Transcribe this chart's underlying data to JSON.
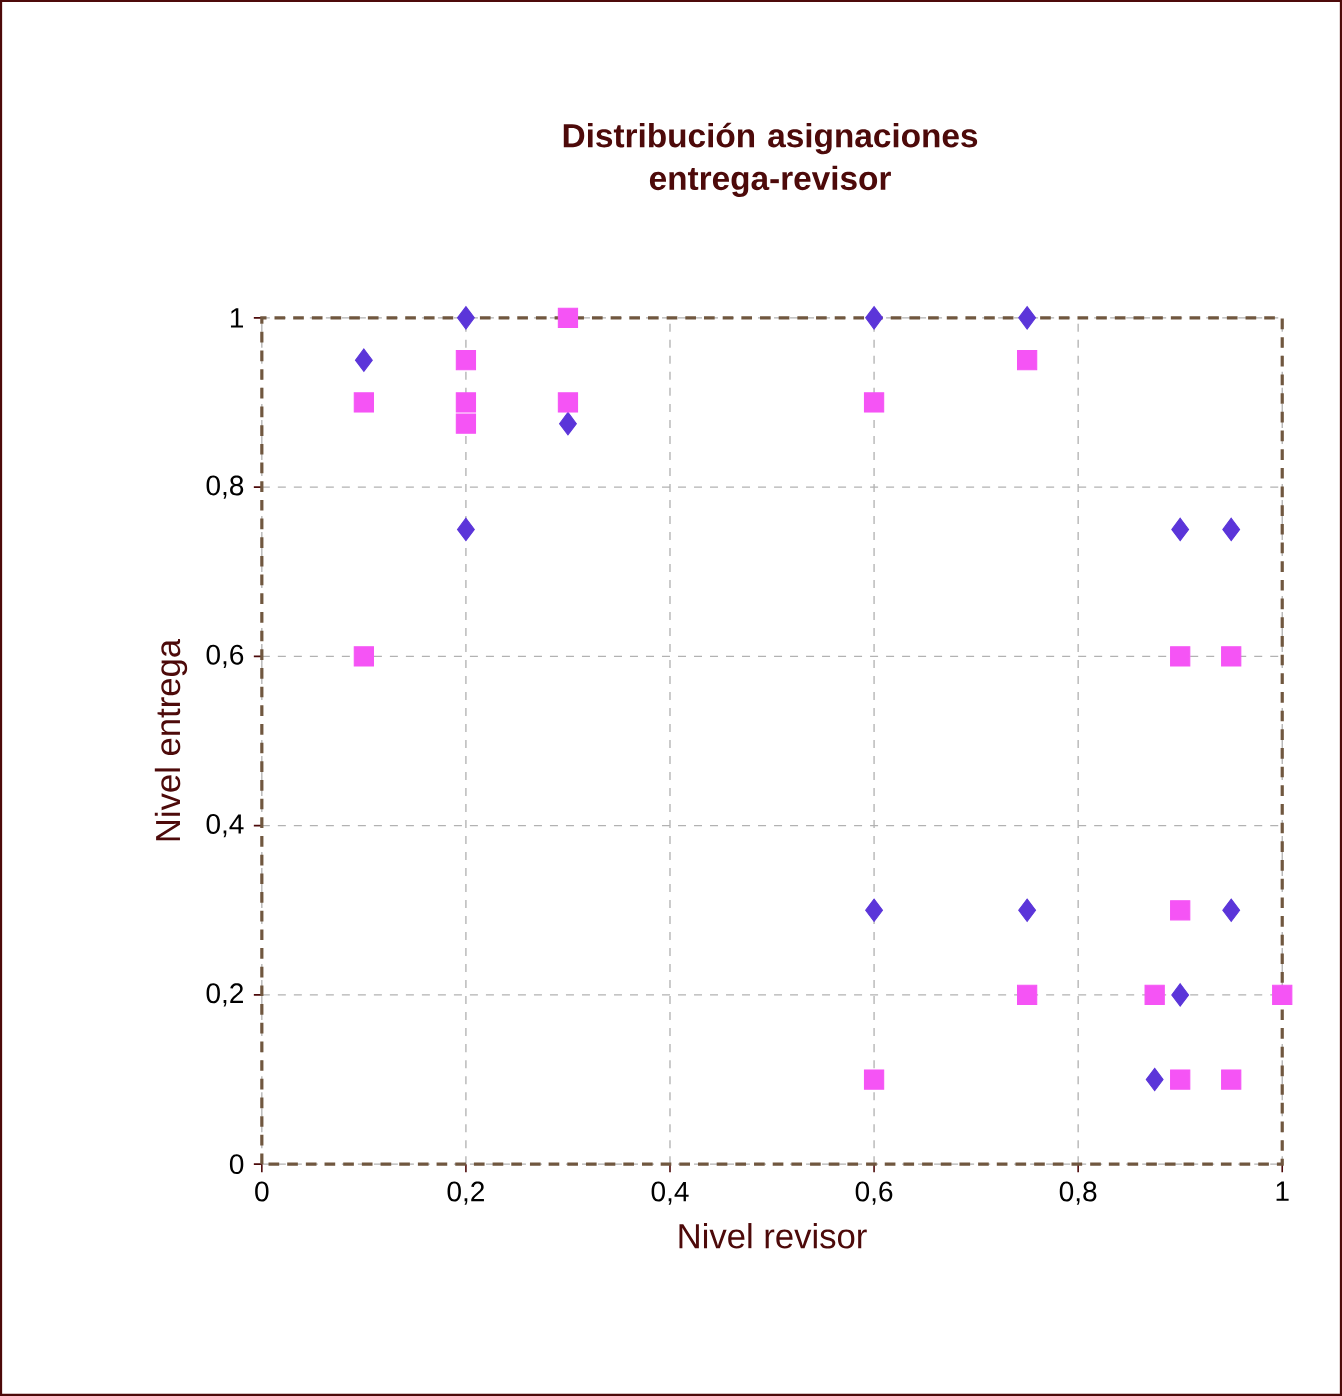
{
  "chart_data": {
    "type": "scatter",
    "title": "Distribución asignaciones entrega-revisor",
    "xlabel": "Nivel revisor",
    "ylabel": "Nivel entrega",
    "xlim": [
      0,
      1
    ],
    "ylim": [
      0,
      1
    ],
    "xticks": [
      {
        "value": 0,
        "label": "0"
      },
      {
        "value": 0.2,
        "label": "0,2"
      },
      {
        "value": 0.4,
        "label": "0,4"
      },
      {
        "value": 0.6,
        "label": "0,6"
      },
      {
        "value": 0.8,
        "label": "0,8"
      },
      {
        "value": 1,
        "label": "1"
      }
    ],
    "yticks": [
      {
        "value": 0,
        "label": "0"
      },
      {
        "value": 0.2,
        "label": "0,2"
      },
      {
        "value": 0.4,
        "label": "0,4"
      },
      {
        "value": 0.6,
        "label": "0,6"
      },
      {
        "value": 0.8,
        "label": "0,8"
      },
      {
        "value": 1,
        "label": "1"
      }
    ],
    "grid": true,
    "series": [
      {
        "color": "#5b35d9",
        "marker": "diamond",
        "x": [
          0.1,
          0.2,
          0.2,
          0.3,
          0.6,
          0.75,
          0.9,
          0.95,
          0.6,
          0.75,
          0.95,
          0.9,
          0.875
        ],
        "values": [
          0.95,
          1,
          0.75,
          0.875,
          1,
          1,
          0.75,
          0.75,
          0.3,
          0.3,
          0.3,
          0.2,
          0.1
        ]
      },
      {
        "color": "#f554f5",
        "marker": "square",
        "x": [
          0.1,
          0.1,
          0.2,
          0.2,
          0.2,
          0.3,
          0.3,
          0.6,
          0.75,
          0.9,
          0.95,
          0.9,
          0.75,
          0.875,
          1,
          0.6,
          0.9,
          0.95
        ],
        "values": [
          0.9,
          0.6,
          0.95,
          0.9,
          0.875,
          1,
          0.9,
          0.9,
          0.95,
          0.6,
          0.6,
          0.3,
          0.2,
          0.2,
          0.2,
          0.1,
          0.1,
          0.1
        ]
      }
    ]
  }
}
